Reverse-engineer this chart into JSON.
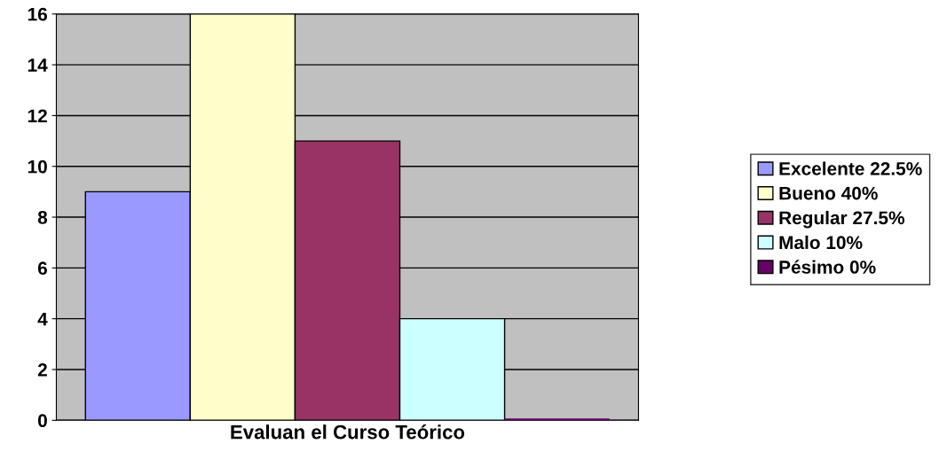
{
  "chart_data": {
    "type": "bar",
    "categories": [
      "Evaluan el Curso Teórico"
    ],
    "series": [
      {
        "name": "Excelente 22.5%",
        "color": "#9999ff",
        "values": [
          9
        ]
      },
      {
        "name": "Bueno 40%",
        "color": "#ffffcc",
        "values": [
          16
        ]
      },
      {
        "name": "Regular 27.5%",
        "color": "#993366",
        "values": [
          11
        ]
      },
      {
        "name": "Malo 10%",
        "color": "#ccffff",
        "values": [
          4
        ]
      },
      {
        "name": "Pésimo 0%",
        "color": "#660066",
        "values": [
          0
        ]
      }
    ],
    "ylim": [
      0,
      16
    ],
    "yticks": [
      0,
      2,
      4,
      6,
      8,
      10,
      12,
      14,
      16
    ],
    "grid": "y",
    "legend": "right"
  }
}
